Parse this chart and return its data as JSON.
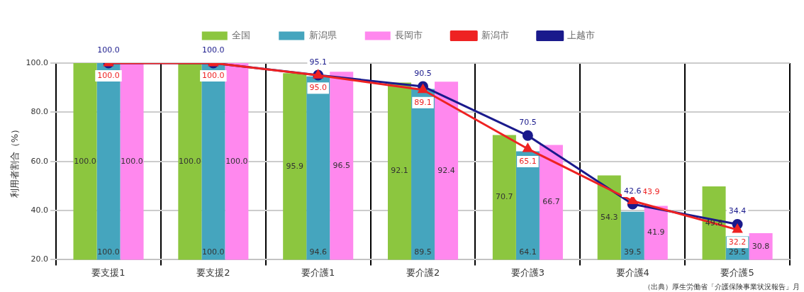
{
  "chart_data": {
    "type": "bar",
    "ylabel": "利用者割合（%）",
    "categories": [
      "要支援1",
      "要支援2",
      "要介護1",
      "要介護2",
      "要介護3",
      "要介護4",
      "要介護5"
    ],
    "series": [
      {
        "name": "全国",
        "color": "#8cc63f",
        "values": [
          100.0,
          100.0,
          95.9,
          92.1,
          70.7,
          54.3,
          49.8
        ],
        "value_labels": [
          "100.0",
          "100.0",
          "95.9",
          "92.1",
          "70.7",
          "54.3",
          "49.8"
        ]
      },
      {
        "name": "新潟県",
        "color": "#45a5be",
        "values": [
          100.0,
          100.0,
          94.6,
          89.5,
          64.1,
          39.5,
          29.5
        ],
        "value_labels": [
          "100.0",
          "100.0",
          "94.6",
          "89.5",
          "64.1",
          "39.5",
          "29.5"
        ]
      },
      {
        "name": "長岡市",
        "color": "#ff88ee",
        "values": [
          100.0,
          100.0,
          96.5,
          92.4,
          66.7,
          41.9,
          30.8
        ],
        "value_labels": [
          "100.0",
          "100.0",
          "96.5",
          "92.4",
          "66.7",
          "41.9",
          "30.8"
        ]
      },
      {
        "name": "新潟市",
        "type": "line",
        "color": "#ee2222",
        "marker": "triangle",
        "values": [
          100.0,
          100.0,
          95.0,
          89.1,
          65.1,
          43.9,
          32.2
        ],
        "value_labels": [
          "100.0",
          "100.0",
          "95.0",
          "89.1",
          "65.1",
          "43.9",
          "32.2"
        ]
      },
      {
        "name": "上越市",
        "type": "line",
        "color": "#1a1a8c",
        "marker": "circle",
        "values": [
          100.0,
          100.0,
          95.1,
          90.5,
          70.5,
          42.6,
          34.4
        ],
        "value_labels": [
          "100.0",
          "100.0",
          "95.1",
          "90.5",
          "70.5",
          "42.6",
          "34.4"
        ]
      }
    ],
    "ylim": [
      20,
      100
    ],
    "yticks": [
      {
        "value": 20,
        "label": "20.0"
      },
      {
        "value": 40,
        "label": "40.0"
      },
      {
        "value": 60,
        "label": "60.0"
      },
      {
        "value": 80,
        "label": "80.0"
      },
      {
        "value": 100,
        "label": "100.0"
      }
    ],
    "grid": true,
    "legend": "top",
    "annotations": [
      "（出典）厚生労働省「介護保険事業状況報告」月"
    ]
  }
}
